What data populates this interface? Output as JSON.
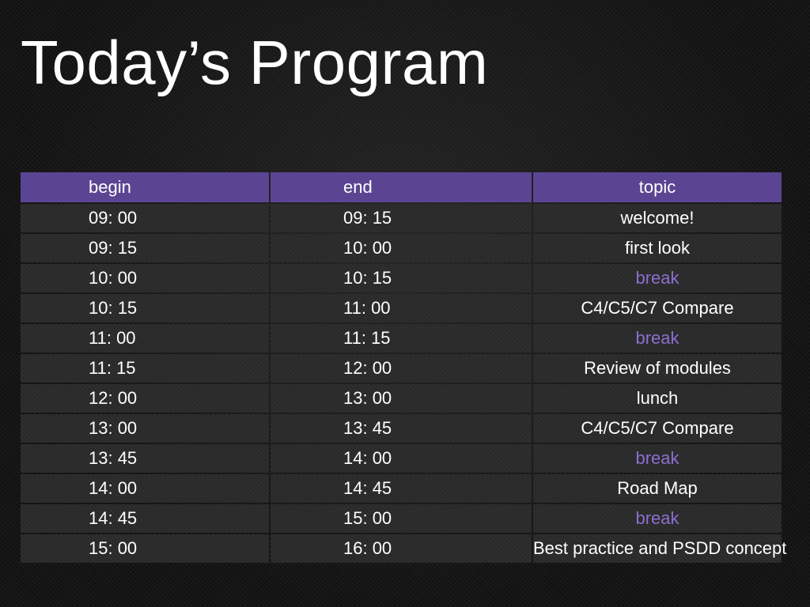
{
  "slide": {
    "title": "Today’s Program"
  },
  "colors": {
    "header_background": "#5b4592",
    "row_background": "#2a2a2a",
    "break_text": "#8b6fd1",
    "text": "#ffffff"
  },
  "table": {
    "headers": {
      "begin": "begin",
      "end": "end",
      "topic": "topic"
    },
    "rows": [
      {
        "begin": "09: 00",
        "end": "09: 15",
        "topic": "welcome!",
        "is_break": false
      },
      {
        "begin": "09: 15",
        "end": "10: 00",
        "topic": "first look",
        "is_break": false
      },
      {
        "begin": "10: 00",
        "end": "10: 15",
        "topic": "break",
        "is_break": true
      },
      {
        "begin": "10: 15",
        "end": "11: 00",
        "topic": "C4/C5/C7 Compare",
        "is_break": false
      },
      {
        "begin": "11: 00",
        "end": "11: 15",
        "topic": "break",
        "is_break": true
      },
      {
        "begin": "11: 15",
        "end": "12: 00",
        "topic": "Review of modules",
        "is_break": false
      },
      {
        "begin": "12: 00",
        "end": "13: 00",
        "topic": "lunch",
        "is_break": false
      },
      {
        "begin": "13: 00",
        "end": "13: 45",
        "topic": "C4/C5/C7 Compare",
        "is_break": false
      },
      {
        "begin": "13: 45",
        "end": "14: 00",
        "topic": "break",
        "is_break": true
      },
      {
        "begin": "14: 00",
        "end": "14: 45",
        "topic": "Road Map",
        "is_break": false
      },
      {
        "begin": "14: 45",
        "end": "15: 00",
        "topic": "break",
        "is_break": true
      },
      {
        "begin": "15: 00",
        "end": "16: 00",
        "topic": "Best practice and PSDD concept",
        "is_break": false
      }
    ]
  }
}
